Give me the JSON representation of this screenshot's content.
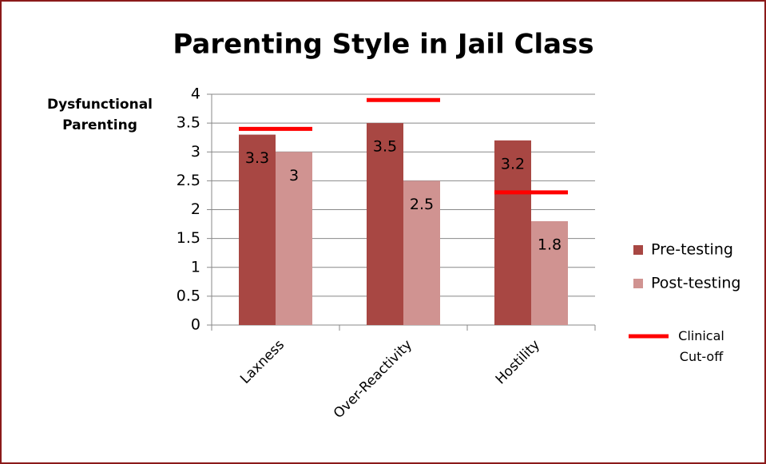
{
  "chart_data": {
    "type": "bar",
    "title": "Parenting Style in Jail Class",
    "y_label": "Dysfunctional Parenting",
    "categories": [
      "Laxness",
      "Over-Reactivity",
      "Hostility"
    ],
    "series": [
      {
        "name": "Pre-testing",
        "color": "#a84743",
        "values": [
          3.3,
          3.5,
          3.2
        ]
      },
      {
        "name": "Post-testing",
        "color": "#d09391",
        "values": [
          3,
          2.5,
          1.8
        ]
      }
    ],
    "cutoff": {
      "name": "Clinical Cut-off",
      "color": "#ff0000",
      "values": [
        3.4,
        3.9,
        2.3
      ]
    },
    "ylim": [
      0,
      4
    ],
    "yticks": [
      0,
      0.5,
      1,
      1.5,
      2,
      2.5,
      3,
      3.5,
      4
    ],
    "grid": true,
    "legend": "right"
  }
}
